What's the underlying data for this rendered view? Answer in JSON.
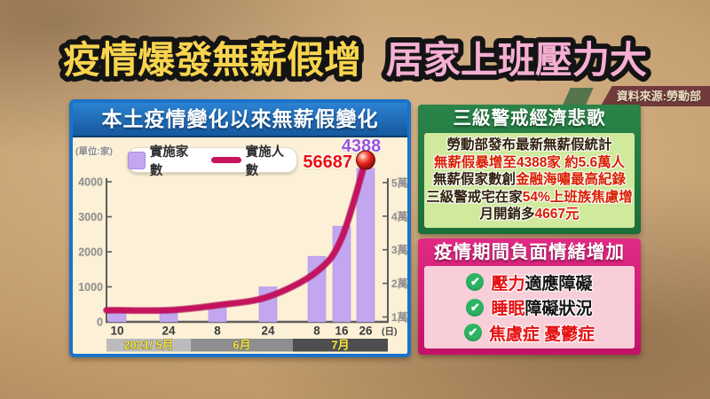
{
  "headline": {
    "part1": "疫情爆發無薪假增",
    "part2": "居家上班壓力大"
  },
  "source": {
    "label": "資料來源:勞動部"
  },
  "chart_panel": {
    "title": "本土疫情變化以來無薪假變化",
    "unit_note": "(單位:家)",
    "legend": [
      {
        "label": "實施家數",
        "type": "bar",
        "color": "#c3a6f0"
      },
      {
        "label": "實施人數",
        "type": "line",
        "color": "#c5135f"
      }
    ]
  },
  "chart_data": {
    "type": "bar+line",
    "title": "本土疫情變化以來無薪假變化",
    "categories": [
      "10",
      "24",
      "8",
      "24",
      "8",
      "16",
      "26"
    ],
    "x_unit_suffix": "(日)",
    "month_bands": [
      {
        "label": "2021/ 5月",
        "color": "#bcbcbc"
      },
      {
        "label": "6月",
        "color": "#8e8e8e"
      },
      {
        "label": "7月",
        "color": "#4e4e4e"
      }
    ],
    "series": [
      {
        "name": "實施家數",
        "type": "bar",
        "axis": "left",
        "values": [
          380,
          360,
          500,
          1000,
          1870,
          2730,
          4388
        ],
        "color": "#c3a6f0"
      },
      {
        "name": "實施人數",
        "type": "line",
        "axis": "right",
        "values": [
          12000,
          12000,
          13500,
          16000,
          23500,
          33500,
          56687
        ],
        "color": "#c5135f"
      }
    ],
    "left_axis": {
      "ticks": [
        0,
        1000,
        2000,
        3000,
        4000
      ],
      "ylim": [
        0,
        4500
      ]
    },
    "right_axis": {
      "tick_labels": [
        "1萬",
        "2萬",
        "3萬",
        "4萬",
        "5萬"
      ],
      "tick_values": [
        10000,
        20000,
        30000,
        40000,
        50000
      ]
    },
    "annotations": {
      "companies": "4388",
      "people": "56687"
    },
    "legend_position": "top"
  },
  "alert_panel": {
    "title": "三級警戒經濟悲歌",
    "lines": [
      [
        {
          "text": "勞動部發布最新無薪假統計",
          "color": "dark"
        }
      ],
      [
        {
          "text": "無薪假暴增至4388家 約5.6萬人",
          "color": "red"
        }
      ],
      [
        {
          "text": "無薪假家數創",
          "color": "dark"
        },
        {
          "text": "金融海嘯最高紀錄",
          "color": "red"
        }
      ],
      [
        {
          "text": "三級警戒宅在家",
          "color": "dark"
        },
        {
          "text": "54%上班族焦慮增",
          "color": "red"
        }
      ],
      [
        {
          "text": "月開銷多",
          "color": "dark"
        },
        {
          "text": "4667元",
          "color": "red"
        }
      ]
    ]
  },
  "emotion_panel": {
    "title": "疫情期間負面情緒增加",
    "items": [
      [
        {
          "text": "壓力",
          "color": "red"
        },
        {
          "text": "適應障礙",
          "color": "dark"
        }
      ],
      [
        {
          "text": "睡眠",
          "color": "red"
        },
        {
          "text": "障礙狀況",
          "color": "dark"
        }
      ],
      [
        {
          "text": "焦慮症 憂鬱症",
          "color": "red"
        }
      ]
    ]
  },
  "colors": {
    "headline_yellow": "#f8d44e",
    "headline_pink": "#f5afd2",
    "bar_purple": "#c3a6f0",
    "line_magenta": "#c5135f",
    "peak_companies_label": "#9d54d6",
    "peak_people_label": "#e81111",
    "panel_blue": "#1a73c8",
    "panel_green": "#1c6e38",
    "panel_pink": "#c31169"
  }
}
